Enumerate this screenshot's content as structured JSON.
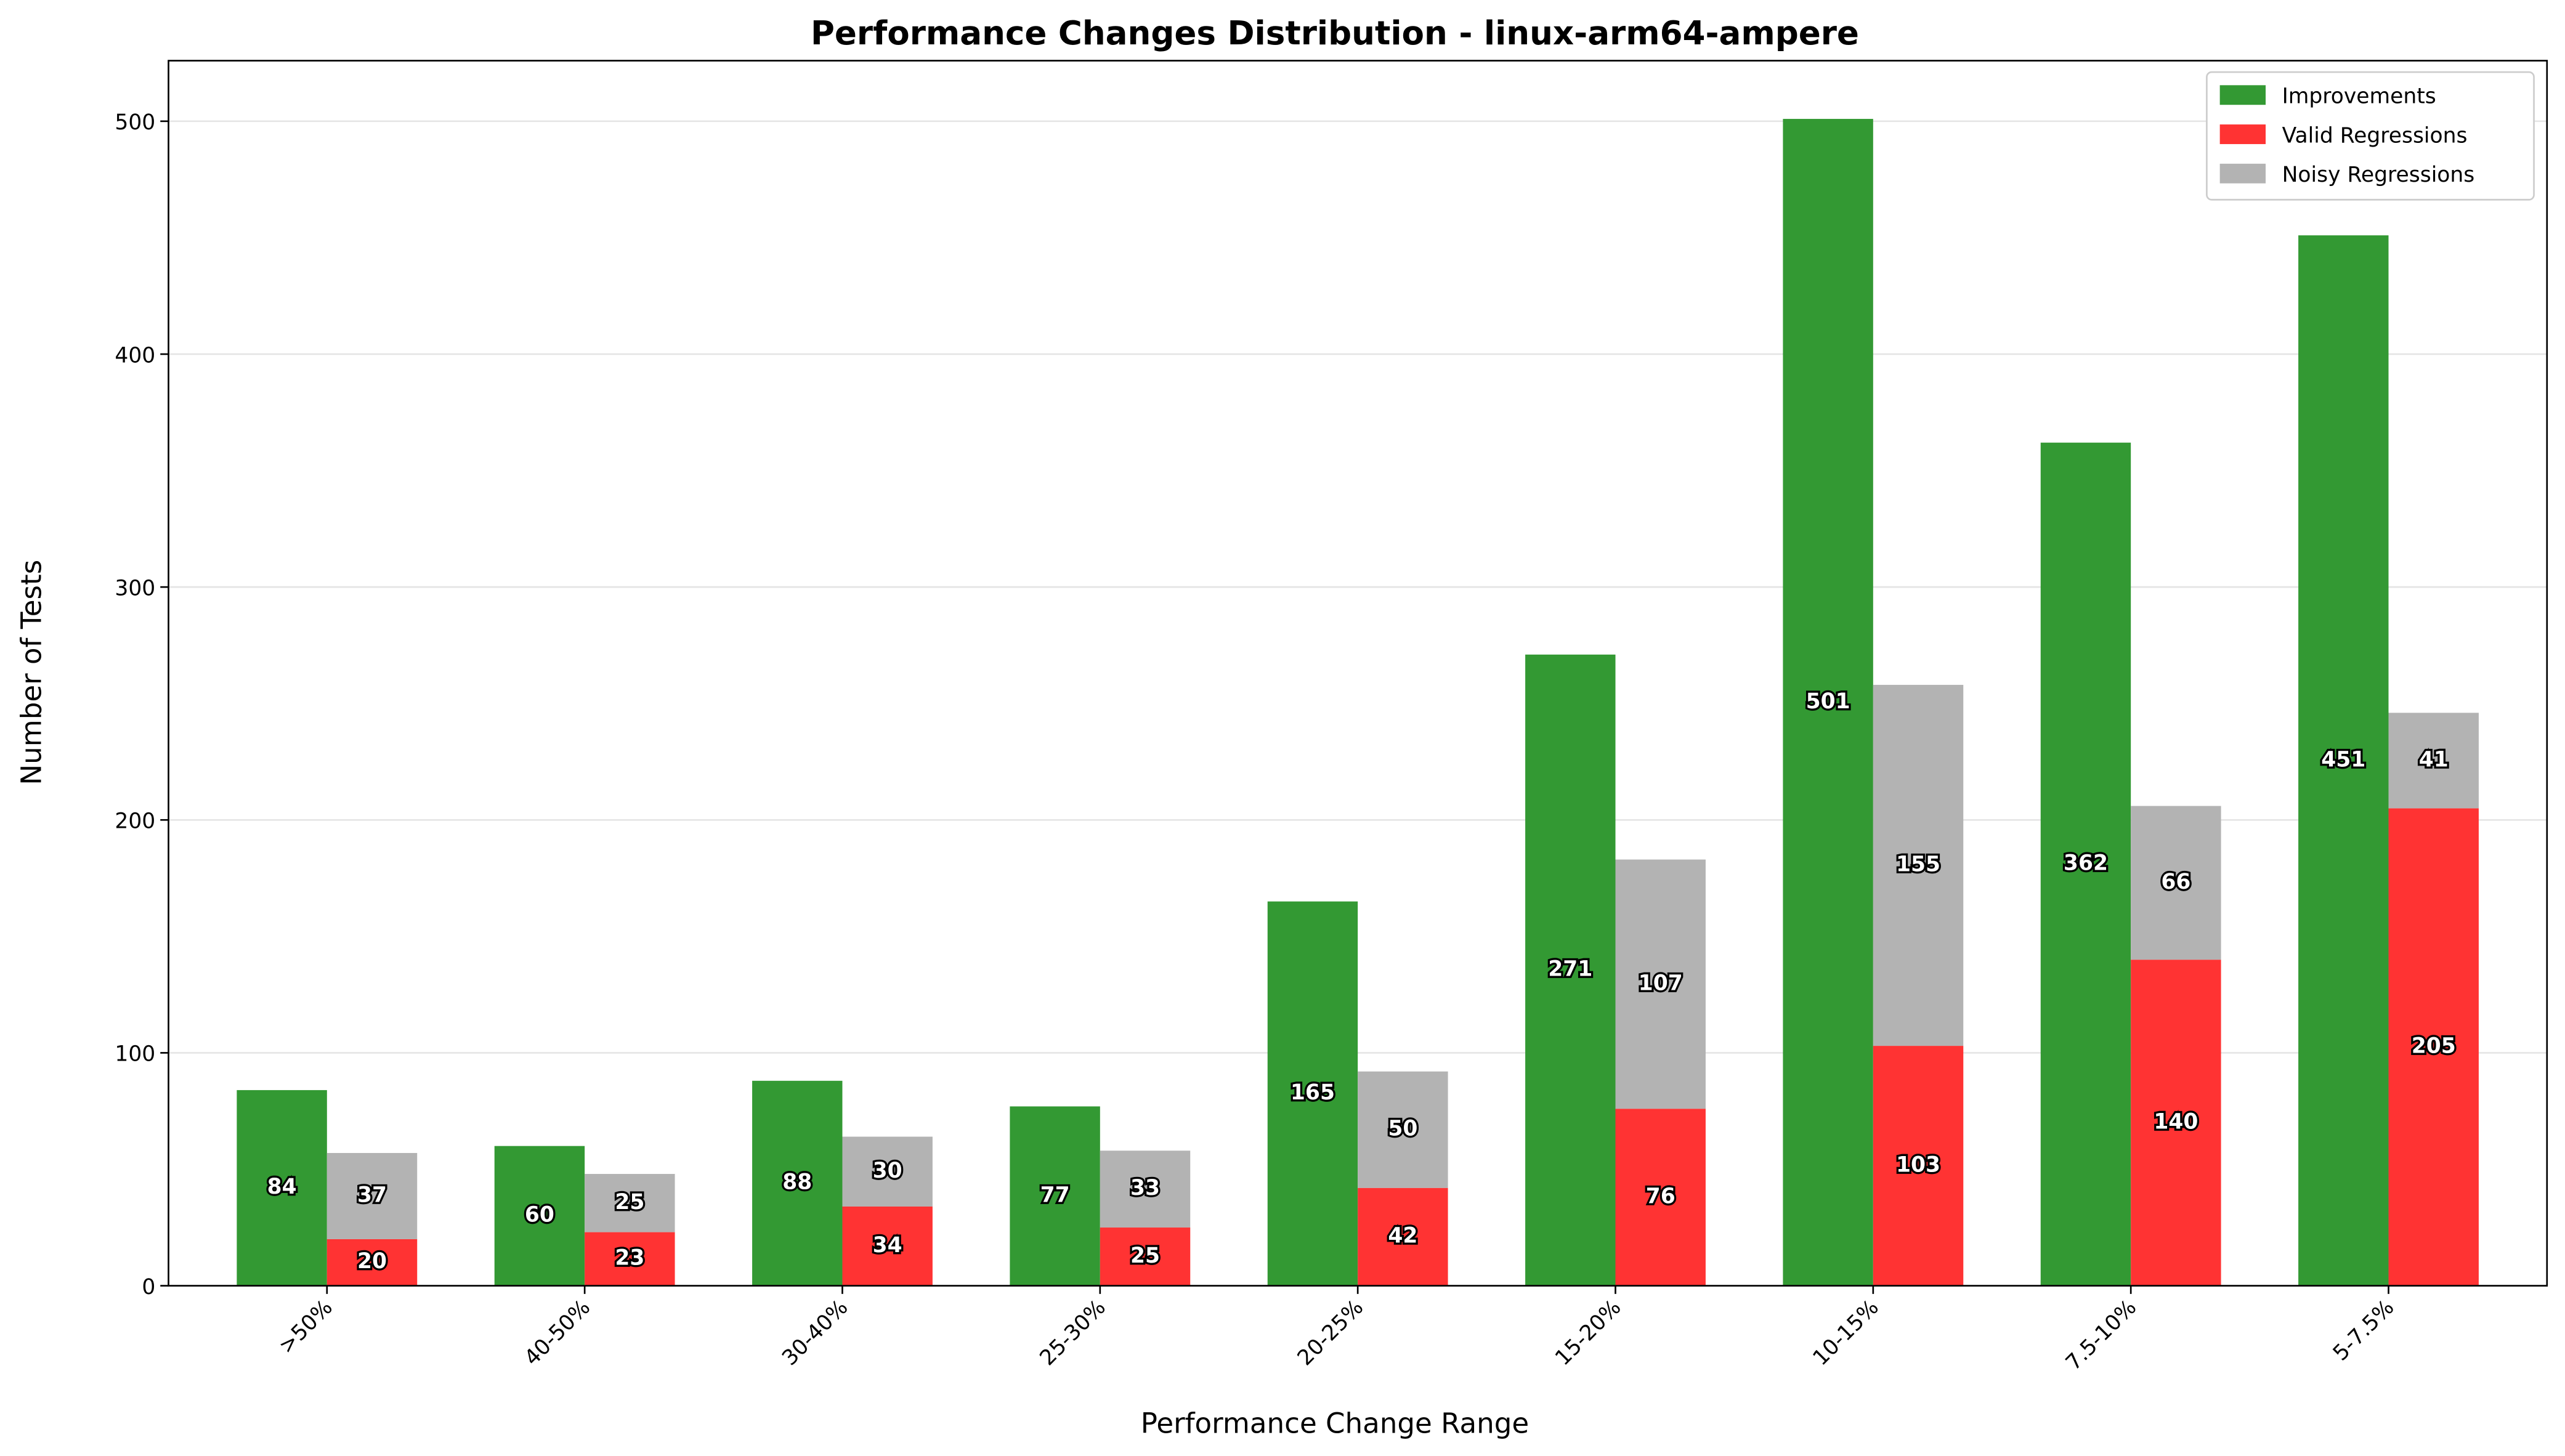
{
  "chart_data": {
    "type": "bar",
    "title": "Performance Changes Distribution - linux-arm64-ampere",
    "x_label": "Performance Change Range",
    "y_label": "Number of Tests",
    "categories": [
      ">50%",
      "40-50%",
      "30-40%",
      "25-30%",
      "20-25%",
      "15-20%",
      "10-15%",
      "7.5-10%",
      "5-7.5%"
    ],
    "series": [
      {
        "name": "Improvements",
        "color": "#339933",
        "values": [
          84,
          60,
          88,
          77,
          165,
          271,
          501,
          362,
          451
        ]
      },
      {
        "name": "Valid Regressions",
        "color": "#ff3333",
        "values": [
          20,
          23,
          34,
          25,
          42,
          76,
          103,
          140,
          205
        ]
      },
      {
        "name": "Noisy Regressions",
        "color": "#b3b3b3",
        "values": [
          37,
          25,
          30,
          33,
          50,
          107,
          155,
          66,
          41
        ]
      }
    ],
    "ylim": [
      0,
      526
    ],
    "yticks": [
      0,
      100,
      200,
      300,
      400,
      500
    ],
    "grid": true,
    "legend": "upper right"
  }
}
